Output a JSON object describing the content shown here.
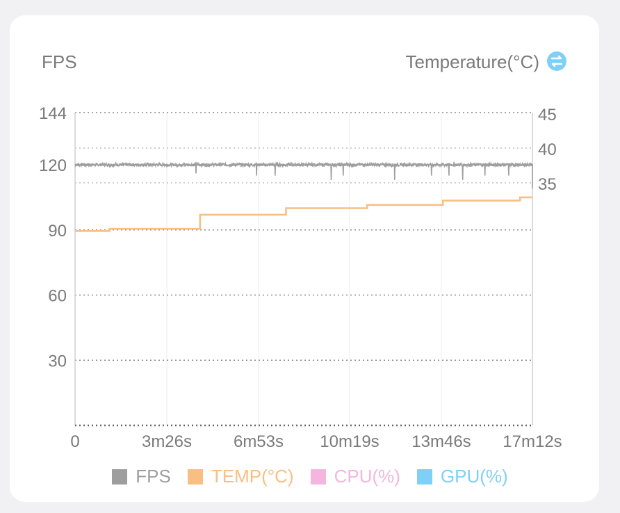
{
  "header": {
    "left_title": "FPS",
    "right_title": "Temperature(°C)"
  },
  "colors": {
    "fps": "#9e9e9e",
    "temp": "#f9bf82",
    "cpu": "#f6b5de",
    "gpu": "#7fd0f7",
    "swap_icon": "#7fd0f7"
  },
  "chart_data": {
    "type": "line",
    "x_tick_labels": [
      "0",
      "3m26s",
      "6m53s",
      "10m19s",
      "13m46s",
      "17m12s"
    ],
    "x_range_seconds": [
      0,
      1032
    ],
    "y_left": {
      "ticks": [
        "144",
        "120",
        "90",
        "60",
        "30"
      ],
      "range": [
        0,
        144
      ]
    },
    "y_right": {
      "ticks": [
        "45",
        "40",
        "35"
      ]
    },
    "grid": true,
    "legend_position": "bottom",
    "series": [
      {
        "name": "FPS",
        "axis": "left",
        "base": 120,
        "dips": [
          [
            423,
            116
          ],
          [
            635,
            115
          ],
          [
            700,
            115
          ],
          [
            896,
            113
          ],
          [
            938,
            115
          ],
          [
            1118,
            113
          ],
          [
            1247,
            115
          ],
          [
            1308,
            115
          ],
          [
            1356,
            113
          ],
          [
            1434,
            115
          ],
          [
            1517,
            115
          ],
          [
            1550,
            119
          ]
        ],
        "points_x_seconds": [
          0,
          1032
        ]
      },
      {
        "name": "TEMP(°C)",
        "axis": "left_equiv",
        "steps": [
          [
            0,
            89.5
          ],
          [
            78,
            90.5
          ],
          [
            282,
            97
          ],
          [
            476,
            100
          ],
          [
            659,
            101.5
          ],
          [
            830,
            103.5
          ],
          [
            1004,
            105
          ],
          [
            1032,
            105
          ]
        ]
      },
      {
        "name": "CPU(%)",
        "values": []
      },
      {
        "name": "GPU(%)",
        "values": []
      }
    ]
  },
  "legend": {
    "fps": "FPS",
    "temp": "TEMP(°C)",
    "cpu": "CPU(%)",
    "gpu": "GPU(%)"
  }
}
